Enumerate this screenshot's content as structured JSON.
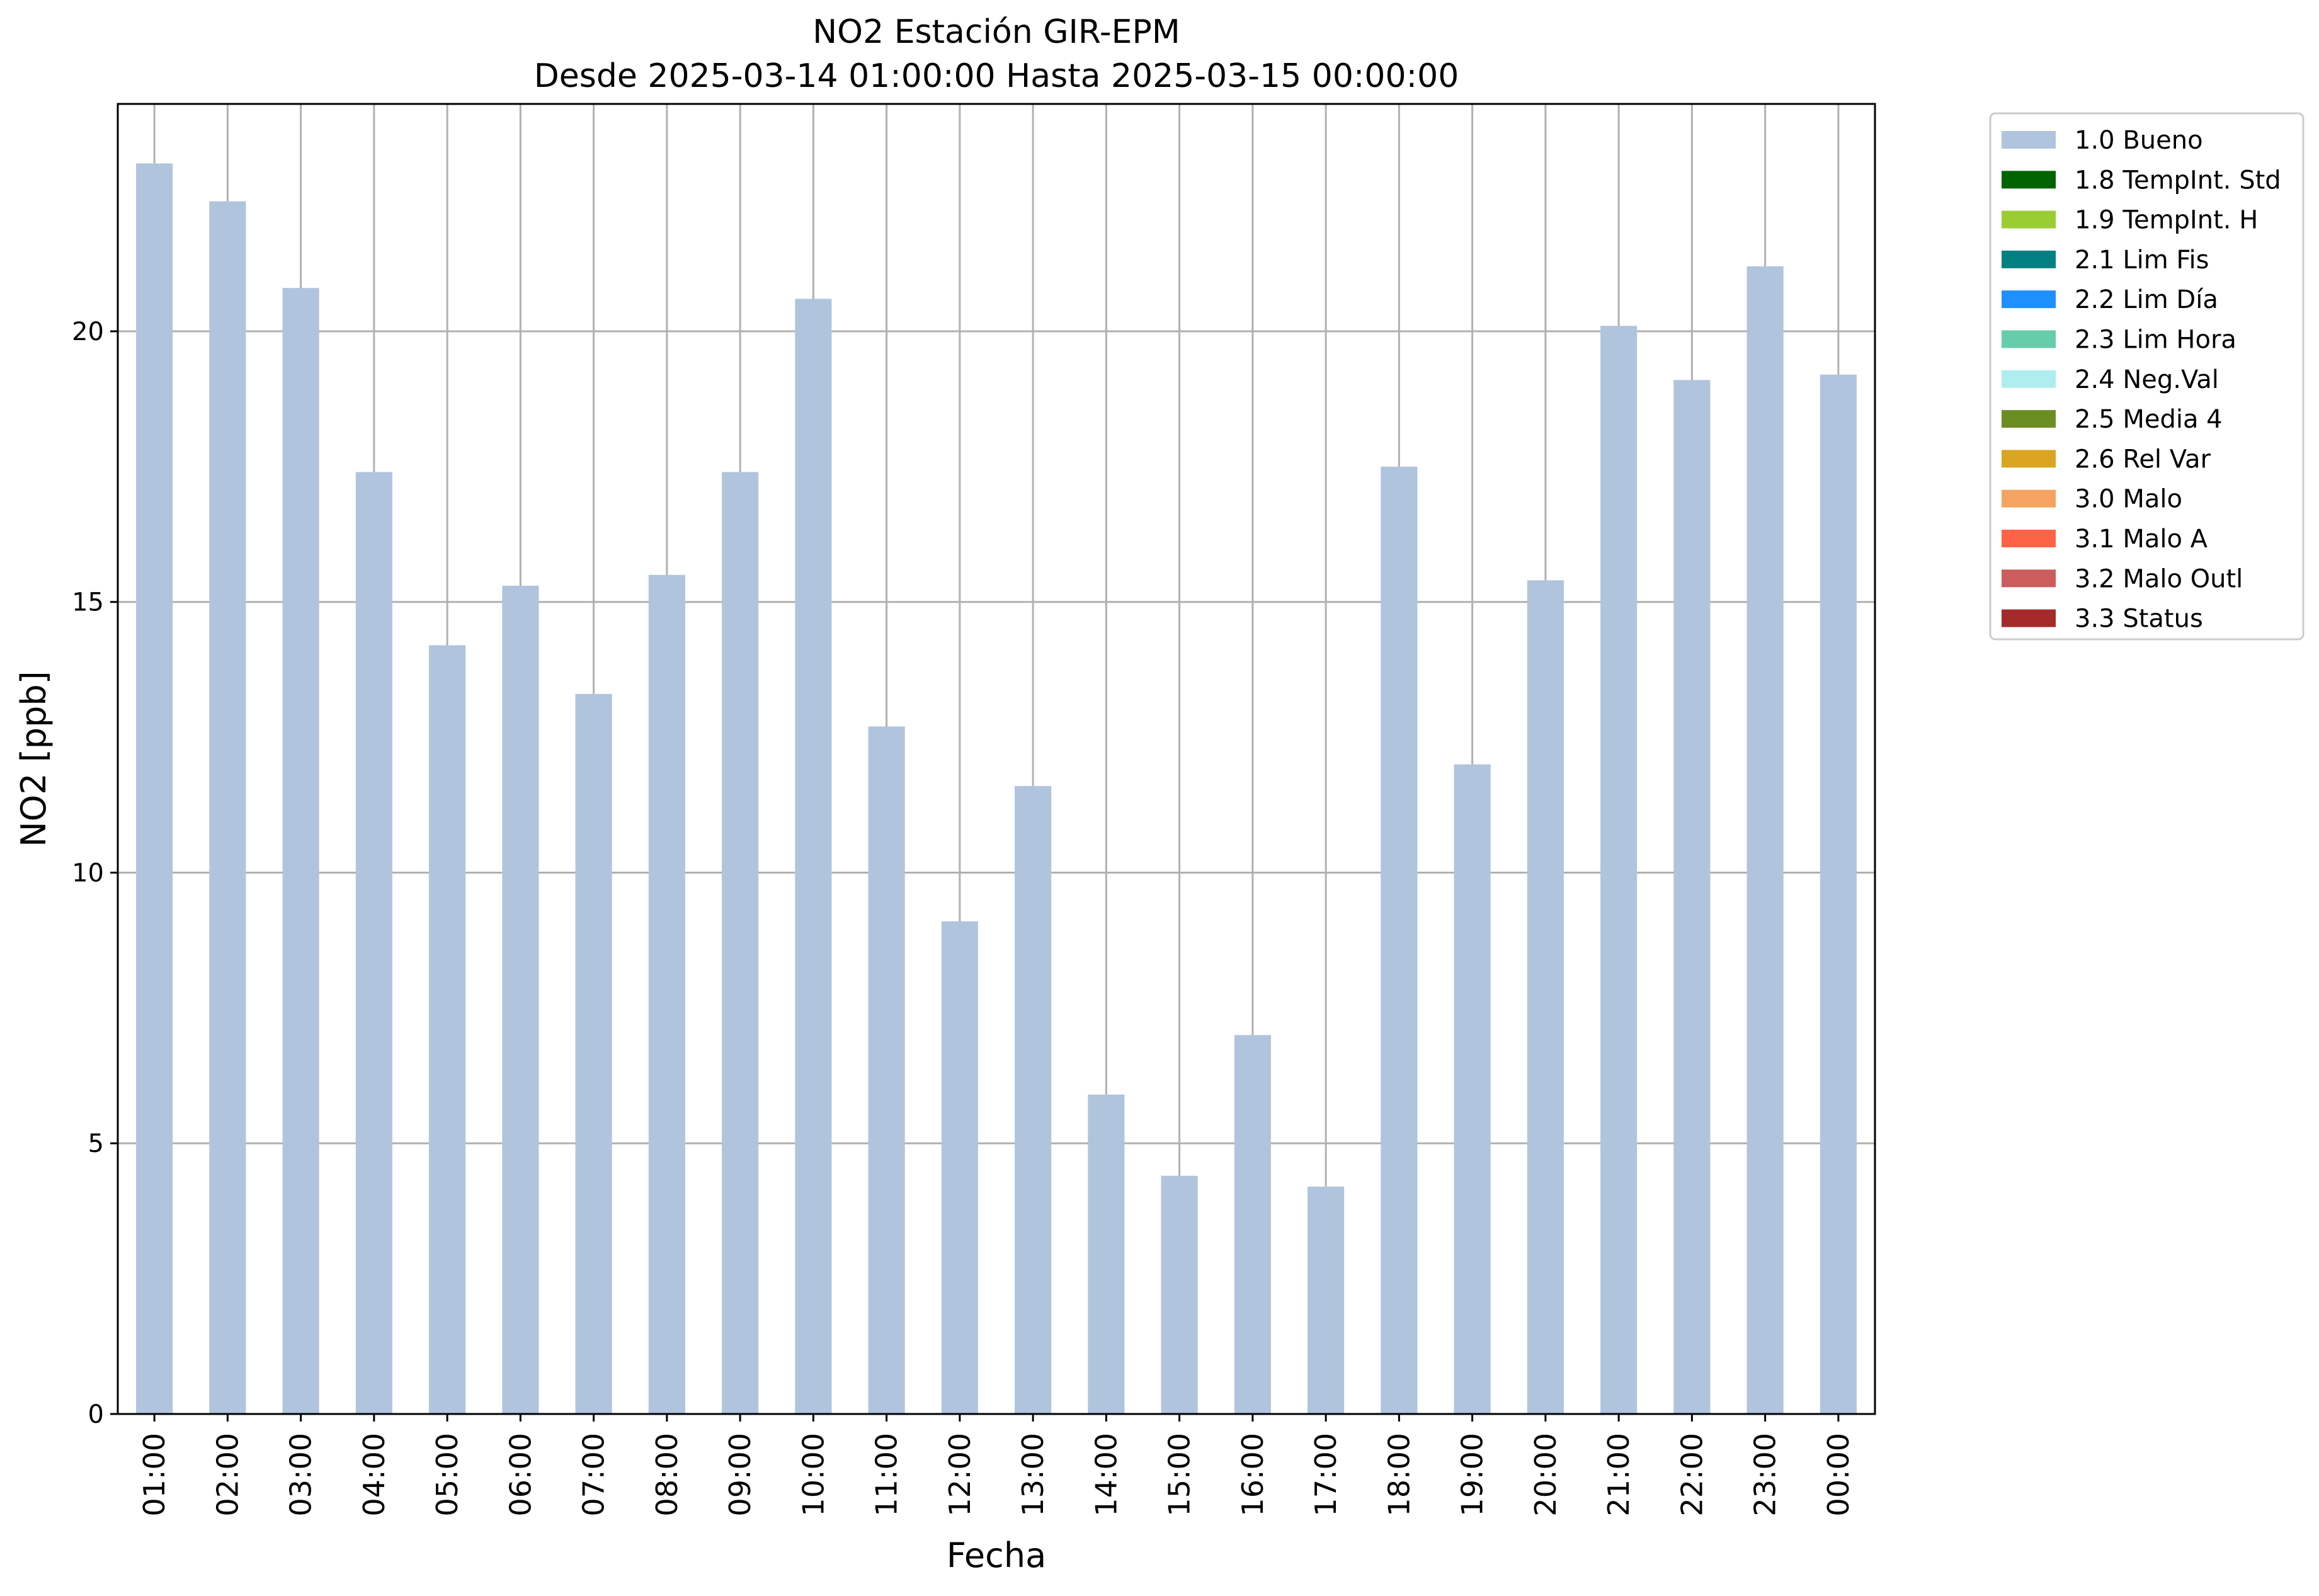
{
  "chart_data": {
    "type": "bar",
    "title": "NO2 Estación GIR-EPM",
    "subtitle": "Desde 2025-03-14 01:00:00 Hasta 2025-03-15 00:00:00",
    "xlabel": "Fecha",
    "ylabel": "NO2 [ppb]",
    "ylim": [
      0,
      24.2
    ],
    "yticks": [
      0,
      5,
      10,
      15,
      20
    ],
    "grid": true,
    "legend_position": "outside-top-right",
    "categories": [
      "01:00",
      "02:00",
      "03:00",
      "04:00",
      "05:00",
      "06:00",
      "07:00",
      "08:00",
      "09:00",
      "10:00",
      "11:00",
      "12:00",
      "13:00",
      "14:00",
      "15:00",
      "16:00",
      "17:00",
      "18:00",
      "19:00",
      "20:00",
      "21:00",
      "22:00",
      "23:00",
      "00:00"
    ],
    "series": [
      {
        "name": "1.0 Bueno",
        "color": "#b0c4de",
        "values": [
          23.1,
          22.4,
          20.8,
          17.4,
          14.2,
          15.3,
          13.3,
          15.5,
          17.4,
          20.6,
          12.7,
          9.1,
          11.6,
          5.9,
          4.4,
          7.0,
          4.2,
          17.5,
          12.0,
          15.4,
          20.1,
          19.1,
          21.2,
          19.2
        ]
      }
    ],
    "legend": [
      {
        "label": "1.0 Bueno",
        "color": "#b0c4de"
      },
      {
        "label": "1.8 TempInt. Std",
        "color": "#006400"
      },
      {
        "label": "1.9 TempInt. H",
        "color": "#9acd32"
      },
      {
        "label": "2.1 Lim Fis",
        "color": "#008080"
      },
      {
        "label": "2.2 Lim Día",
        "color": "#1e90ff"
      },
      {
        "label": "2.3 Lim Hora",
        "color": "#66cdaa"
      },
      {
        "label": "2.4 Neg.Val",
        "color": "#afeeee"
      },
      {
        "label": "2.5 Media 4",
        "color": "#6b8e23"
      },
      {
        "label": "2.6 Rel Var",
        "color": "#daa520"
      },
      {
        "label": "3.0 Malo",
        "color": "#f4a460"
      },
      {
        "label": "3.1 Malo A",
        "color": "#ff6347"
      },
      {
        "label": "3.2 Malo Outl",
        "color": "#cd5c5c"
      },
      {
        "label": "3.3 Status",
        "color": "#a52a2a"
      }
    ]
  }
}
